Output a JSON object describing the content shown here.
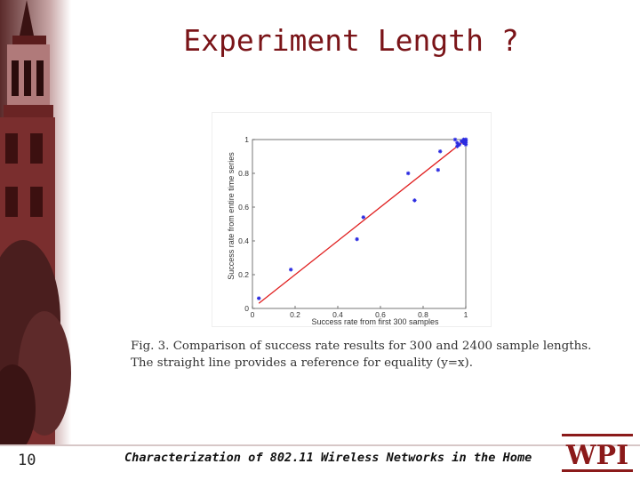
{
  "slide": {
    "title": "Experiment Length ?",
    "caption_line1": "Fig. 3.  Comparison of success rate results for 300 and 2400 sample lengths.",
    "caption_line2": "The straight line provides a reference for equality (y=x).",
    "page_number": "10",
    "footer": "Characterization of 802.11 Wireless Networks in the Home",
    "logo_text": "WPI"
  },
  "colors": {
    "title": "#7a1418",
    "points": "#2a2ae0",
    "reference_line": "#e02020",
    "logo": "#8b1a1a"
  },
  "chart_data": {
    "type": "scatter",
    "title": "",
    "xlabel": "Success rate from first 300 samples",
    "ylabel": "Success rate from entire time series",
    "xlim": [
      0,
      1
    ],
    "ylim": [
      0,
      1
    ],
    "xticks": [
      "0",
      "0.2",
      "0.4",
      "0.6",
      "0.8",
      "1"
    ],
    "yticks": [
      "0",
      "0.2",
      "0.4",
      "0.6",
      "0.8",
      "1"
    ],
    "grid": false,
    "series": [
      {
        "marker": "*",
        "points": [
          [
            0.03,
            0.06
          ],
          [
            0.18,
            0.23
          ],
          [
            0.49,
            0.41
          ],
          [
            0.52,
            0.54
          ],
          [
            0.73,
            0.8
          ],
          [
            0.76,
            0.64
          ],
          [
            0.87,
            0.82
          ],
          [
            0.88,
            0.93
          ],
          [
            0.95,
            1.0
          ],
          [
            0.96,
            0.98
          ],
          [
            0.96,
            0.96
          ],
          [
            0.97,
            0.97
          ],
          [
            0.98,
            0.99
          ],
          [
            0.99,
            1.0
          ],
          [
            0.99,
            0.98
          ],
          [
            1.0,
            1.0
          ],
          [
            1.0,
            0.99
          ],
          [
            1.0,
            0.98
          ],
          [
            1.0,
            0.97
          ],
          [
            1.0,
            1.0
          ]
        ]
      }
    ],
    "reference_line": {
      "label": "y=x",
      "from": [
        0.03,
        0.03
      ],
      "to": [
        1,
        1
      ]
    }
  }
}
